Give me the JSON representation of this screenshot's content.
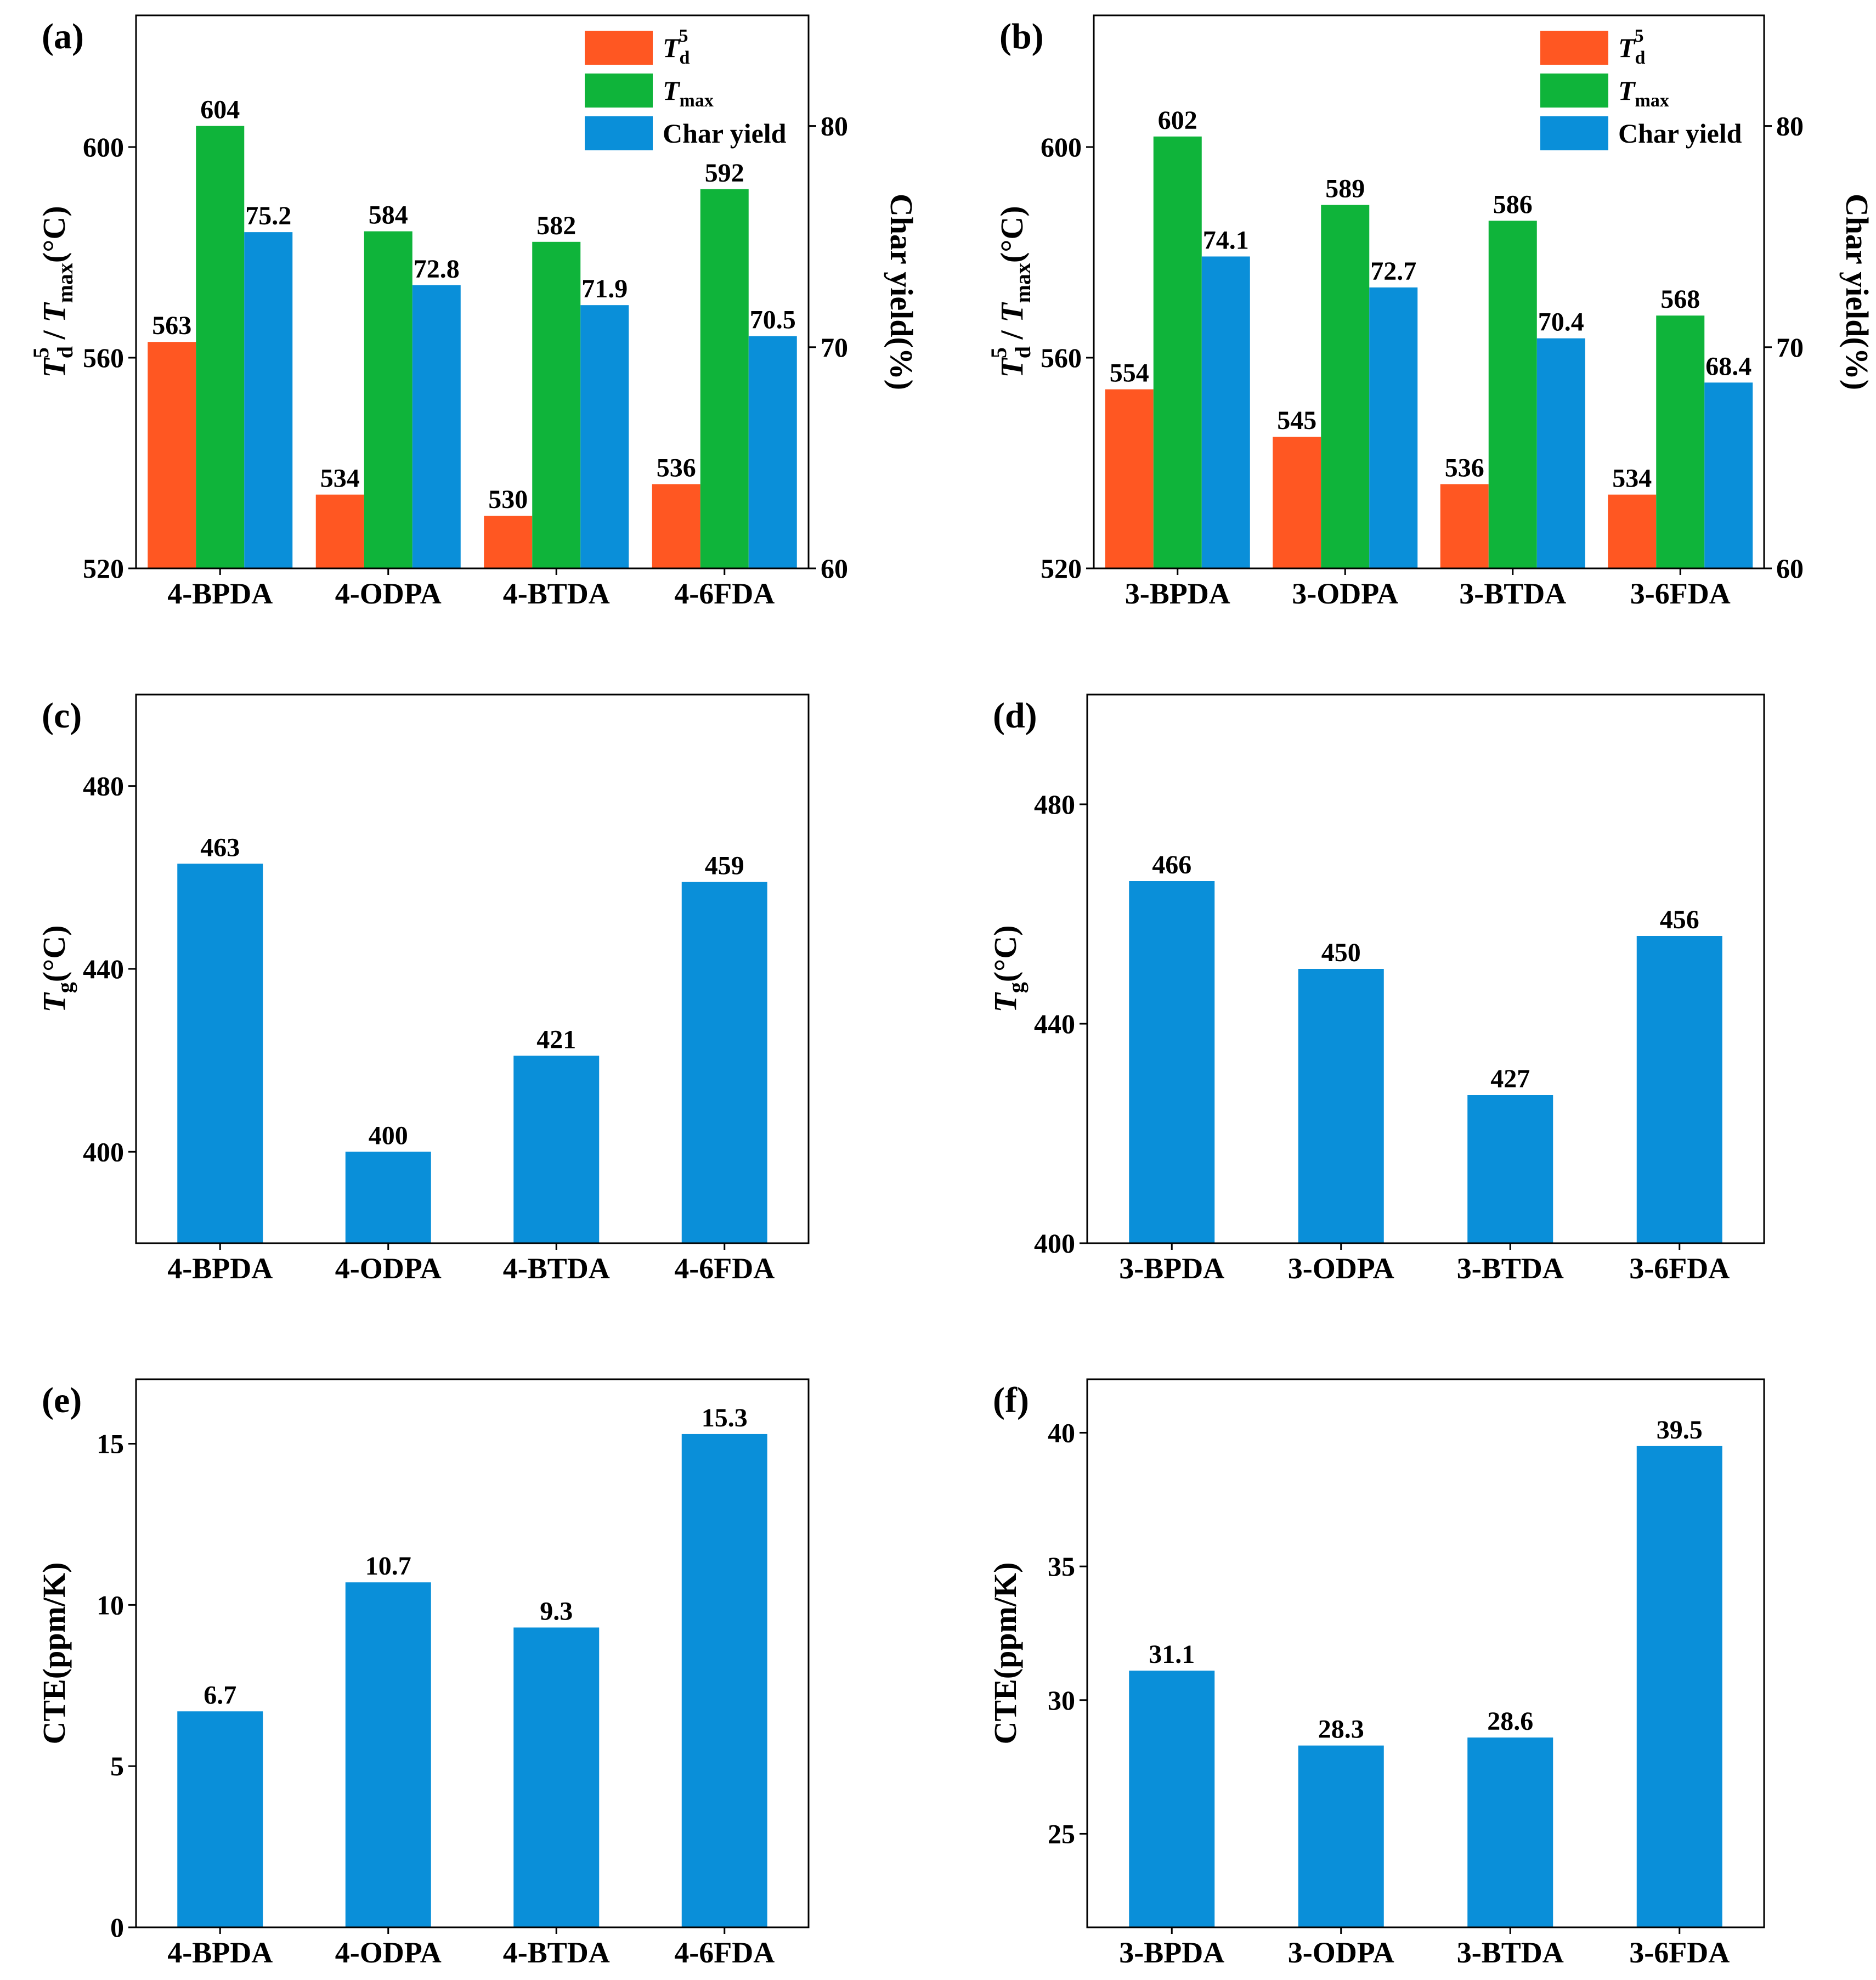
{
  "colors": {
    "td5": "#FF5722",
    "tmax": "#0FB43A",
    "char_yield": "#0A8FD9",
    "single": "#0A8FD9"
  },
  "chart_data": [
    {
      "id": "a",
      "type": "bar",
      "panel_label": "(a)",
      "categories": [
        "4-BPDA",
        "4-ODPA",
        "4-BTDA",
        "4-6FDA"
      ],
      "series": [
        {
          "key": "td5",
          "name_main": "T",
          "name_sub": "d",
          "name_sup": "5",
          "axis": "left",
          "values": [
            563,
            534,
            530,
            536
          ],
          "labels": [
            "563",
            "534",
            "530",
            "536"
          ]
        },
        {
          "key": "tmax",
          "name_main": "T",
          "name_sub": "max",
          "name_sup": "",
          "axis": "left",
          "values": [
            604,
            584,
            582,
            592
          ],
          "labels": [
            "604",
            "584",
            "582",
            "592"
          ]
        },
        {
          "key": "char_yield",
          "name_main": "Char yield",
          "name_sub": "",
          "name_sup": "",
          "axis": "right",
          "values": [
            75.2,
            72.8,
            71.9,
            70.5
          ],
          "labels": [
            "75.2",
            "72.8",
            "71.9",
            "70.5"
          ]
        }
      ],
      "ylim": [
        520,
        625
      ],
      "yticks": [
        520,
        560,
        600
      ],
      "ytick_labels": [
        "520",
        "560",
        "600"
      ],
      "ylabel": {
        "t1": "T",
        "sub1": "d",
        "sup1": "5",
        "mid": " / ",
        "t2": "T",
        "sub2": "max",
        "unit": "(°C)"
      },
      "y2lim": [
        60,
        85
      ],
      "y2ticks": [
        60,
        70,
        80
      ],
      "y2tick_labels": [
        "60",
        "70",
        "80"
      ],
      "y2label": "Char yield(%)",
      "legend_position": "top-right"
    },
    {
      "id": "b",
      "type": "bar",
      "panel_label": "(b)",
      "categories": [
        "3-BPDA",
        "3-ODPA",
        "3-BTDA",
        "3-6FDA"
      ],
      "series": [
        {
          "key": "td5",
          "name_main": "T",
          "name_sub": "d",
          "name_sup": "5",
          "axis": "left",
          "values": [
            554,
            545,
            536,
            534
          ],
          "labels": [
            "554",
            "545",
            "536",
            "534"
          ]
        },
        {
          "key": "tmax",
          "name_main": "T",
          "name_sub": "max",
          "name_sup": "",
          "axis": "left",
          "values": [
            602,
            589,
            586,
            568
          ],
          "labels": [
            "602",
            "589",
            "586",
            "568"
          ]
        },
        {
          "key": "char_yield",
          "name_main": "Char yield",
          "name_sub": "",
          "name_sup": "",
          "axis": "right",
          "values": [
            74.1,
            72.7,
            70.4,
            68.4
          ],
          "labels": [
            "74.1",
            "72.7",
            "70.4",
            "68.4"
          ]
        }
      ],
      "ylim": [
        520,
        625
      ],
      "yticks": [
        520,
        560,
        600
      ],
      "ytick_labels": [
        "520",
        "560",
        "600"
      ],
      "ylabel": {
        "t1": "T",
        "sub1": "d",
        "sup1": "5",
        "mid": " / ",
        "t2": "T",
        "sub2": "max",
        "unit": "(°C)"
      },
      "y2lim": [
        60,
        85
      ],
      "y2ticks": [
        60,
        70,
        80
      ],
      "y2tick_labels": [
        "60",
        "70",
        "80"
      ],
      "y2label": "Char yield(%)",
      "legend_position": "top-right"
    },
    {
      "id": "c",
      "type": "bar",
      "panel_label": "(c)",
      "categories": [
        "4-BPDA",
        "4-ODPA",
        "4-BTDA",
        "4-6FDA"
      ],
      "values": [
        463,
        400,
        421,
        459
      ],
      "labels": [
        "463",
        "400",
        "421",
        "459"
      ],
      "ylim": [
        380,
        500
      ],
      "yticks": [
        400,
        440,
        480
      ],
      "ytick_labels": [
        "400",
        "440",
        "480"
      ],
      "ylabel": {
        "t1": "T",
        "sub1": "g",
        "unit": "(°C)"
      }
    },
    {
      "id": "d",
      "type": "bar",
      "panel_label": "(d)",
      "categories": [
        "3-BPDA",
        "3-ODPA",
        "3-BTDA",
        "3-6FDA"
      ],
      "values": [
        466,
        450,
        427,
        456
      ],
      "labels": [
        "466",
        "450",
        "427",
        "456"
      ],
      "ylim": [
        400,
        500
      ],
      "yticks": [
        400,
        440,
        480
      ],
      "ytick_labels": [
        "400",
        "440",
        "480"
      ],
      "ylabel": {
        "t1": "T",
        "sub1": "g",
        "unit": "(°C)"
      }
    },
    {
      "id": "e",
      "type": "bar",
      "panel_label": "(e)",
      "categories": [
        "4-BPDA",
        "4-ODPA",
        "4-BTDA",
        "4-6FDA"
      ],
      "values": [
        6.7,
        10.7,
        9.3,
        15.3
      ],
      "labels": [
        "6.7",
        "10.7",
        "9.3",
        "15.3"
      ],
      "ylim": [
        0,
        17
      ],
      "yticks": [
        0,
        5,
        10,
        15
      ],
      "ytick_labels": [
        "0",
        "5",
        "10",
        "15"
      ],
      "ylabel": {
        "text": "CTE(ppm/K)"
      }
    },
    {
      "id": "f",
      "type": "bar",
      "panel_label": "(f)",
      "categories": [
        "3-BPDA",
        "3-ODPA",
        "3-BTDA",
        "3-6FDA"
      ],
      "values": [
        31.1,
        28.3,
        28.6,
        39.5
      ],
      "labels": [
        "31.1",
        "28.3",
        "28.6",
        "39.5"
      ],
      "ylim": [
        21.5,
        42
      ],
      "yticks": [
        25,
        30,
        35,
        40
      ],
      "ytick_labels": [
        "25",
        "30",
        "35",
        "40"
      ],
      "ylabel": {
        "text": "CTE(ppm/K)"
      }
    }
  ]
}
